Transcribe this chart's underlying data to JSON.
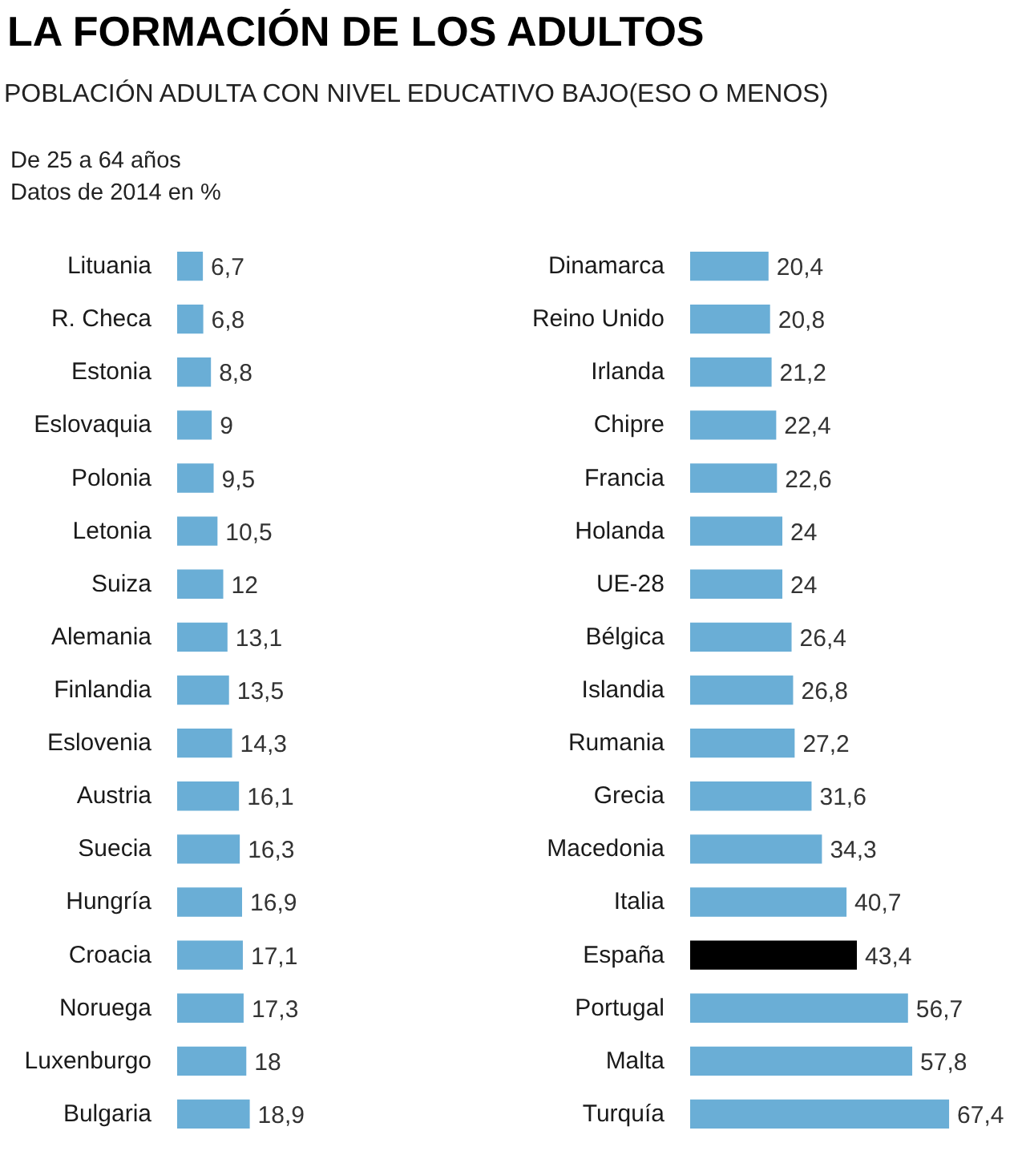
{
  "chart_data": [
    {
      "type": "bar",
      "orientation": "horizontal",
      "title": "LA FORMACIÓN DE LOS ADULTOS",
      "subtitle": "POBLACIÓN ADULTA CON NIVEL EDUCATIVO BAJO(ESO O MENOS)",
      "annotations": [
        "De 25 a 64 años",
        "Datos de 2014 en %"
      ],
      "categories": [
        "Lituania",
        "R. Checa",
        "Estonia",
        "Eslovaquia",
        "Polonia",
        "Letonia",
        "Suiza",
        "Alemania",
        "Finlandia",
        "Eslovenia",
        "Austria",
        "Suecia",
        "Hungría",
        "Croacia",
        "Noruega",
        "Luxenburgo",
        "Bulgaria"
      ],
      "values": [
        6.7,
        6.8,
        8.8,
        9,
        9.5,
        10.5,
        12,
        13.1,
        13.5,
        14.3,
        16.1,
        16.3,
        16.9,
        17.1,
        17.3,
        18,
        18.9
      ],
      "colors": [
        "#6aaed6",
        "#6aaed6",
        "#6aaed6",
        "#6aaed6",
        "#6aaed6",
        "#6aaed6",
        "#6aaed6",
        "#6aaed6",
        "#6aaed6",
        "#6aaed6",
        "#6aaed6",
        "#6aaed6",
        "#6aaed6",
        "#6aaed6",
        "#6aaed6",
        "#6aaed6",
        "#6aaed6"
      ],
      "value_labels": [
        "6,7",
        "6,8",
        "8,8",
        "9",
        "9,5",
        "10,5",
        "12",
        "13,1",
        "13,5",
        "14,3",
        "16,1",
        "16,3",
        "16,9",
        "17,1",
        "17,3",
        "18",
        "18,9"
      ],
      "tick_labels": "y"
    },
    {
      "type": "bar",
      "orientation": "horizontal",
      "categories": [
        "Dinamarca",
        "Reino Unido",
        "Irlanda",
        "Chipre",
        "Francia",
        "Holanda",
        "UE-28",
        "Bélgica",
        "Islandia",
        "Rumania",
        "Grecia",
        "Macedonia",
        "Italia",
        "España",
        "Portugal",
        "Malta",
        "Turquía"
      ],
      "values": [
        20.4,
        20.8,
        21.2,
        22.4,
        22.6,
        24,
        24,
        26.4,
        26.8,
        27.2,
        31.6,
        34.3,
        40.7,
        43.4,
        56.7,
        57.8,
        67.4
      ],
      "colors": [
        "#6aaed6",
        "#6aaed6",
        "#6aaed6",
        "#6aaed6",
        "#6aaed6",
        "#6aaed6",
        "#6aaed6",
        "#6aaed6",
        "#6aaed6",
        "#6aaed6",
        "#6aaed6",
        "#6aaed6",
        "#6aaed6",
        "#000000",
        "#6aaed6",
        "#6aaed6",
        "#6aaed6"
      ],
      "value_labels": [
        "20,4",
        "20,8",
        "21,2",
        "22,4",
        "22,6",
        "24",
        "24",
        "26,4",
        "26,8",
        "27,2",
        "31,6",
        "34,3",
        "40,7",
        "43,4",
        "56,7",
        "57,8",
        "67,4"
      ],
      "tick_labels": "y"
    }
  ]
}
